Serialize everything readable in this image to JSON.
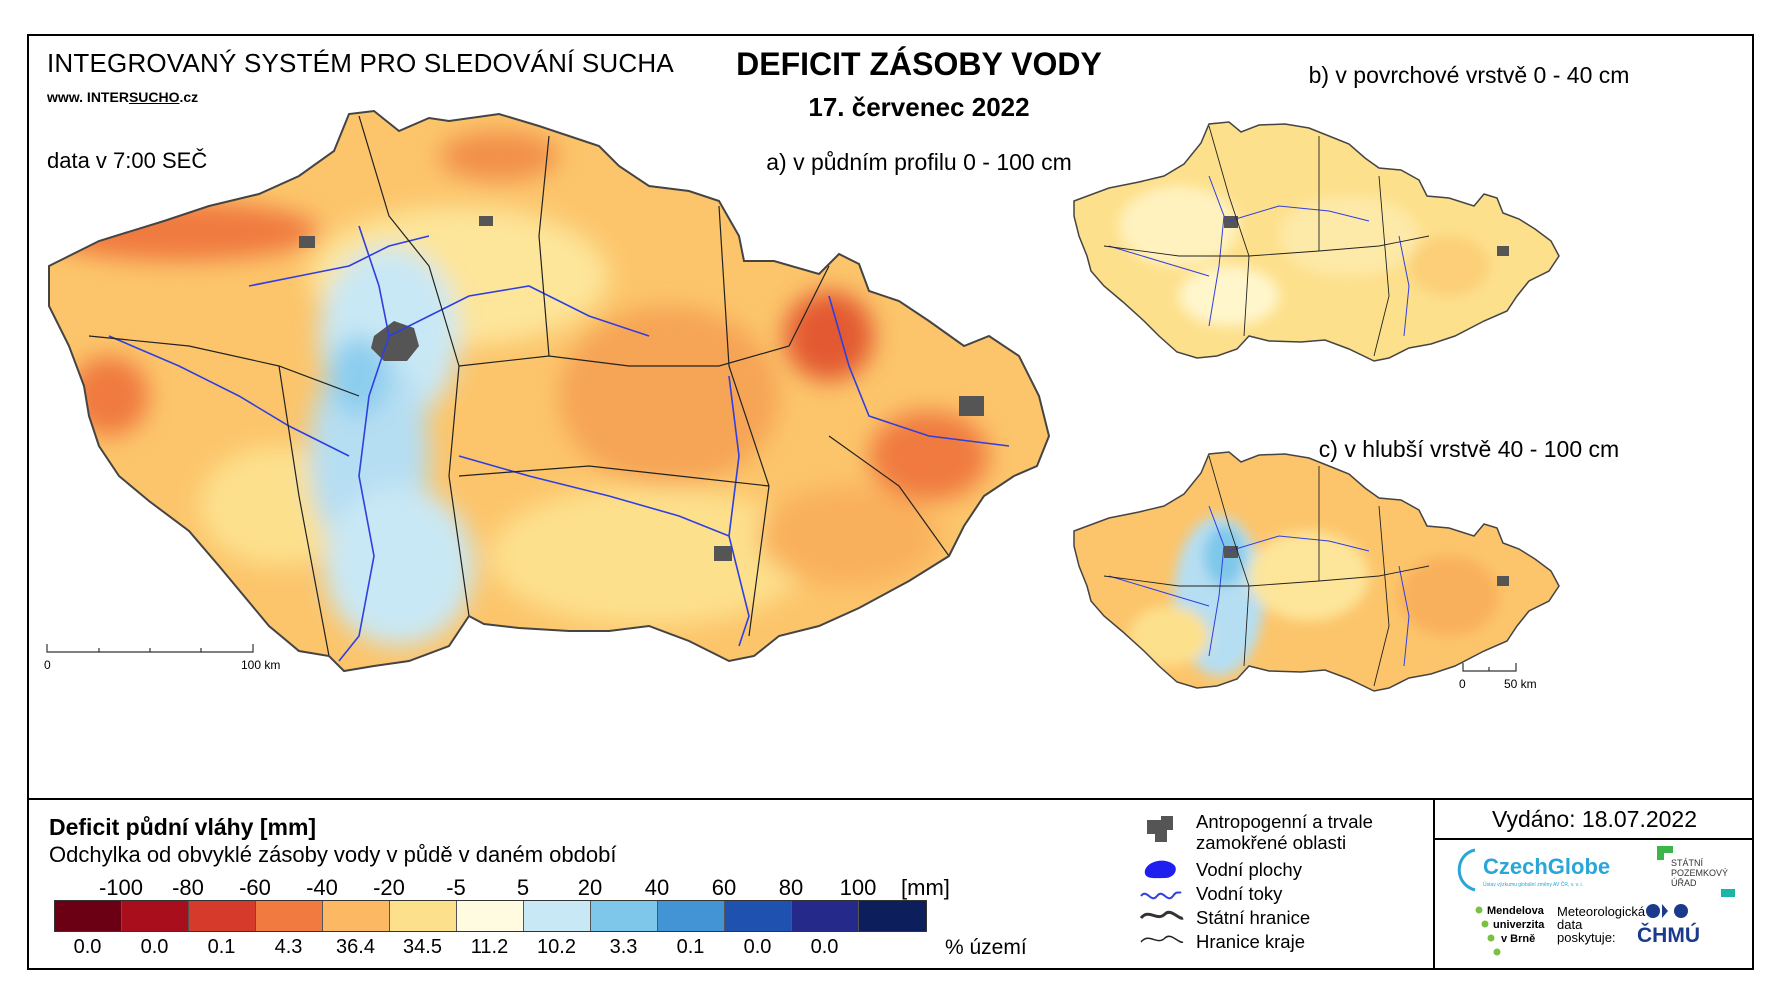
{
  "header": {
    "system_title": "INTEGROVANÝ SYSTÉM PRO SLEDOVÁNÍ SUCHA",
    "website_prefix": "www. INTER",
    "website_mid": "SUCHO",
    "website_suffix": ".cz",
    "data_time": "data v 7:00 SEČ",
    "main_title": "DEFICIT ZÁSOBY VODY",
    "date": "17. červenec 2022"
  },
  "maps": {
    "a_title": "a) v půdním profilu 0 - 100 cm",
    "b_title": "b) v povrchové vrstvě 0 - 40 cm",
    "c_title": "c) v hlubší vrstvě 40 - 100 cm",
    "scale_main": {
      "zero": "0",
      "end": "100 km"
    },
    "scale_small": {
      "zero": "0",
      "end": "50 km"
    }
  },
  "legend": {
    "title": "Deficit půdní vláhy  [mm]",
    "subtitle": "Odchylka od obvyklé zásoby vody v půdě v daném období",
    "ticks": [
      "-100",
      "-80",
      "-60",
      "-40",
      "-20",
      "-5",
      "5",
      "20",
      "40",
      "60",
      "80",
      "100"
    ],
    "unit": "[mm]",
    "colors": [
      "#6b0014",
      "#a80e1c",
      "#d63a2b",
      "#f07a3f",
      "#fdb863",
      "#fde08c",
      "#fffbe0",
      "#c9e8f5",
      "#7ec7ea",
      "#4394d4",
      "#1f52b0",
      "#252a8a",
      "#0d1e5c"
    ],
    "percent": [
      "0.0",
      "0.0",
      "0.1",
      "4.3",
      "36.4",
      "34.5",
      "11.2",
      "10.2",
      "3.3",
      "0.1",
      "0.0",
      "0.0"
    ],
    "percent_unit": "% území"
  },
  "symbols": {
    "urban": "Antropogenní a trvale zamokřené oblasti",
    "urban_line1": "Antropogenní a trvale",
    "urban_line2": "zamokřené oblasti",
    "water_bodies": "Vodní plochy",
    "rivers": "Vodní toky",
    "state_border": "Státní hranice",
    "region_border": "Hranice kraje"
  },
  "footer": {
    "issued": "Vydáno: 18.07.2022",
    "czechglobe": "CzechGlobe",
    "czechglobe_sub": "Ústav výzkumu globální změny AV ČR, v. v. i.",
    "spu_line1": "STÁTNÍ",
    "spu_line2": "POZEMKOVÝ",
    "spu_line3": "ÚŘAD",
    "mendel_line1": "Mendelova",
    "mendel_line2": "univerzita",
    "mendel_line3": "v Brně",
    "meteo_line1": "Meteorologická",
    "meteo_line2": "data",
    "meteo_line3": "poskytuje:",
    "chmu": "ČHMÚ"
  }
}
